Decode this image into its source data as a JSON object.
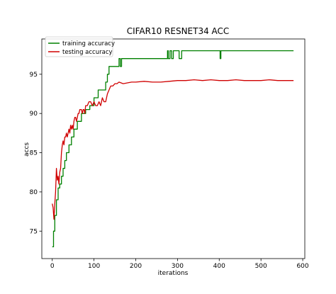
{
  "chart_data": {
    "type": "line",
    "title": "CIFAR10 RESNET34 ACC",
    "xlabel": "iterations",
    "ylabel": "accs",
    "xlim": [
      -25,
      605
    ],
    "ylim": [
      71.5,
      99.5
    ],
    "xticks": [
      0,
      100,
      200,
      300,
      400,
      500,
      600
    ],
    "yticks": [
      75,
      80,
      85,
      90,
      95
    ],
    "grid": false,
    "legend_position": "top-left",
    "series": [
      {
        "name": "training accuracy",
        "color": "#008000",
        "step": true,
        "x": [
          0,
          3,
          6,
          10,
          14,
          18,
          22,
          26,
          30,
          34,
          40,
          46,
          52,
          60,
          70,
          80,
          90,
          100,
          110,
          120,
          128,
          132,
          136,
          145,
          155,
          158,
          160,
          163,
          166,
          175,
          190,
          220,
          250,
          270,
          276,
          278,
          282,
          286,
          290,
          300,
          304,
          310,
          320,
          340,
          360,
          380,
          400,
          402,
          404,
          420,
          450,
          500,
          550,
          578
        ],
        "y": [
          73,
          75,
          77,
          79,
          80.5,
          81,
          82,
          83,
          84,
          85,
          86,
          87,
          88,
          89,
          90,
          90.5,
          91,
          92,
          93,
          93,
          94,
          95,
          96,
          96,
          96,
          96,
          97,
          96,
          97,
          97,
          97,
          97,
          97,
          97,
          98,
          97,
          98,
          97,
          98,
          98,
          97,
          98,
          98,
          98,
          98,
          98,
          98,
          97,
          98,
          98,
          98,
          98,
          98,
          98
        ]
      },
      {
        "name": "testing accuracy",
        "color": "#d00000",
        "step": false,
        "x": [
          0,
          2,
          4,
          6,
          8,
          10,
          12,
          14,
          16,
          18,
          20,
          22,
          24,
          26,
          28,
          30,
          32,
          34,
          36,
          38,
          40,
          42,
          44,
          46,
          48,
          50,
          52,
          54,
          56,
          58,
          60,
          62,
          64,
          66,
          68,
          70,
          72,
          74,
          76,
          78,
          80,
          84,
          88,
          92,
          96,
          100,
          104,
          108,
          112,
          116,
          120,
          124,
          128,
          132,
          136,
          140,
          145,
          150,
          155,
          160,
          170,
          180,
          190,
          200,
          220,
          240,
          260,
          280,
          300,
          320,
          340,
          360,
          380,
          400,
          420,
          440,
          460,
          480,
          500,
          520,
          540,
          560,
          578
        ],
        "y": [
          78.5,
          78,
          76.5,
          78.5,
          80,
          83,
          81.5,
          82,
          81,
          82.5,
          83,
          85,
          86,
          86.5,
          86,
          87,
          87,
          87.5,
          87,
          87.5,
          88,
          87.5,
          88.5,
          88,
          88.5,
          88,
          89,
          89.5,
          89.5,
          89,
          89.5,
          90,
          90,
          90.5,
          90.5,
          90.5,
          90,
          90.5,
          90.5,
          90,
          91,
          91,
          91.5,
          91.5,
          91,
          91.5,
          91,
          91,
          91.5,
          91,
          92,
          91.5,
          91.5,
          92.5,
          93,
          93.5,
          93.5,
          93.8,
          93.8,
          94,
          93.8,
          93.9,
          94,
          94,
          94.1,
          94,
          94,
          94.1,
          94.2,
          94.2,
          94.3,
          94.2,
          94.3,
          94.2,
          94.2,
          94.3,
          94.2,
          94.2,
          94.2,
          94.3,
          94.2,
          94.2,
          94.2
        ]
      }
    ]
  }
}
